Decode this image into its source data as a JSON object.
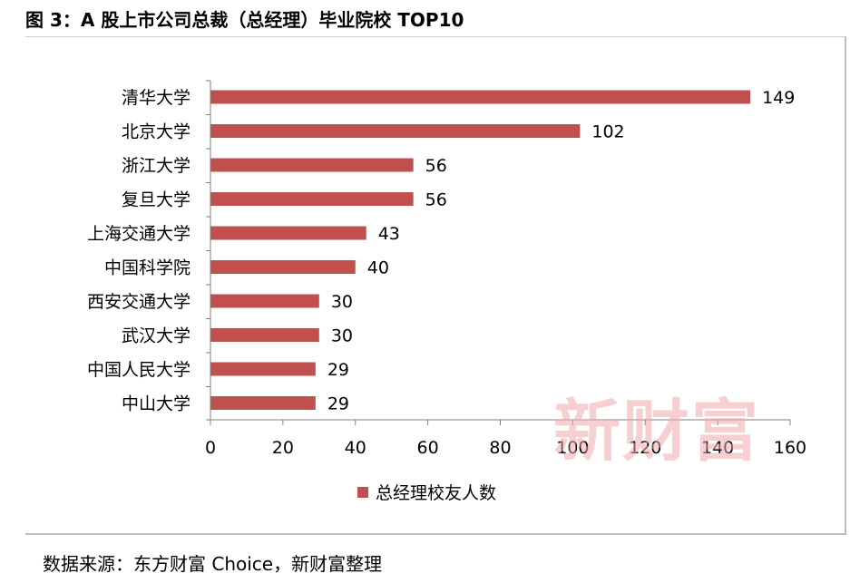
{
  "header": {
    "title": "图 3：A 股上市公司总裁（总经理）毕业院校 TOP10"
  },
  "footer": {
    "source": "数据来源：东方财富 Choice，新财富整理"
  },
  "watermark": {
    "text": "新财富"
  },
  "colors": {
    "bar": "#c0504d",
    "axis": "#7f7f7f"
  },
  "chart_data": {
    "type": "bar",
    "orientation": "horizontal",
    "title": "图 3：A 股上市公司总裁（总经理）毕业院校 TOP10",
    "categories": [
      "清华大学",
      "北京大学",
      "浙江大学",
      "复旦大学",
      "上海交通大学",
      "中国科学院",
      "西安交通大学",
      "武汉大学",
      "中国人民大学",
      "中山大学"
    ],
    "series": [
      {
        "name": "总经理校友人数",
        "values": [
          149,
          102,
          56,
          56,
          43,
          40,
          30,
          30,
          29,
          29
        ]
      }
    ],
    "xlim": [
      0,
      160
    ],
    "xticks": [
      0,
      20,
      40,
      60,
      80,
      100,
      120,
      140,
      160
    ],
    "xlabel": "",
    "ylabel": "",
    "grid": false,
    "data_labels": true,
    "legend_position": "bottom"
  }
}
